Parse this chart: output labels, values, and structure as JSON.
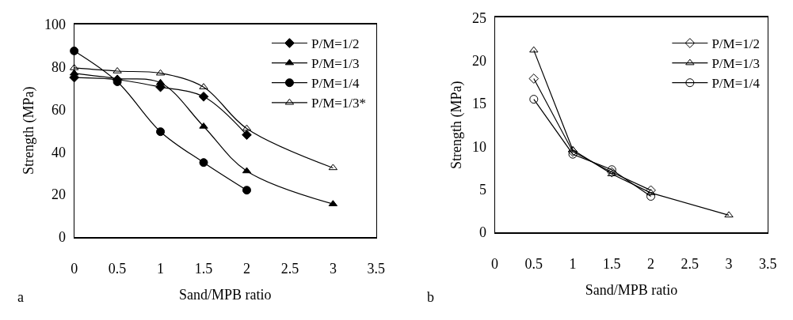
{
  "chart_data": [
    {
      "type": "line",
      "xlabel": "Sand/MPB ratio",
      "ylabel": "Strength (MPa)",
      "annotations": [
        "a"
      ],
      "xlim": [
        0,
        3.5
      ],
      "xticks": [
        0,
        0.5,
        1,
        1.5,
        2,
        2.5,
        3,
        3.5
      ],
      "ylim": [
        0,
        100
      ],
      "yticks": [
        0,
        20,
        40,
        60,
        80,
        100
      ],
      "grid": false,
      "legend": "top right",
      "line_style": "solid",
      "series": [
        {
          "name": "P/M=1/2",
          "color": "#000000",
          "marker": "diamond",
          "x": [
            0,
            0.5,
            1,
            1.5,
            2
          ],
          "values": [
            75,
            74,
            70.5,
            66,
            48
          ]
        },
        {
          "name": "P/M=1/3",
          "color": "#000000",
          "marker": "triangle",
          "x": [
            0,
            0.5,
            1,
            1.5,
            2,
            3
          ],
          "values": [
            77,
            74.5,
            72.5,
            52,
            31,
            15.5
          ]
        },
        {
          "name": "P/M=1/4",
          "color": "#000000",
          "marker": "circle",
          "x": [
            0,
            0.5,
            1,
            1.5,
            2
          ],
          "values": [
            87.5,
            73,
            49.5,
            35,
            22
          ]
        },
        {
          "name": "P/M=1/3*",
          "color": "#000000",
          "marker": "triangle",
          "x": [
            0,
            0.5,
            1,
            1.5,
            2,
            3
          ],
          "values": [
            79.5,
            78,
            77,
            70.5,
            51,
            32.5
          ]
        }
      ]
    },
    {
      "type": "line",
      "xlabel": "Sand/MPB ratio",
      "ylabel": "Strength (MPa)",
      "annotations": [
        "b"
      ],
      "xlim": [
        0,
        3.5
      ],
      "xticks": [
        0,
        0.5,
        1,
        1.5,
        2,
        2.5,
        3,
        3.5
      ],
      "ylim": [
        0,
        25
      ],
      "yticks": [
        0,
        5,
        10,
        15,
        20,
        25
      ],
      "grid": false,
      "legend": "top right",
      "line_style": "solid",
      "series": [
        {
          "name": "P/M=1/2",
          "color": "#000000",
          "marker": "diamond",
          "x": [
            0.5,
            1,
            1.5,
            2
          ],
          "values": [
            17.9,
            9.4,
            7.0,
            4.9
          ]
        },
        {
          "name": "P/M=1/3",
          "color": "#000000",
          "marker": "triangle",
          "x": [
            0.5,
            1,
            1.5,
            2,
            3
          ],
          "values": [
            21.2,
            9.6,
            6.8,
            4.6,
            2.0
          ]
        },
        {
          "name": "P/M=1/4",
          "color": "#000000",
          "marker": "circle",
          "x": [
            0.5,
            1,
            1.5,
            2
          ],
          "values": [
            15.5,
            9.1,
            7.3,
            4.2
          ]
        }
      ]
    }
  ]
}
